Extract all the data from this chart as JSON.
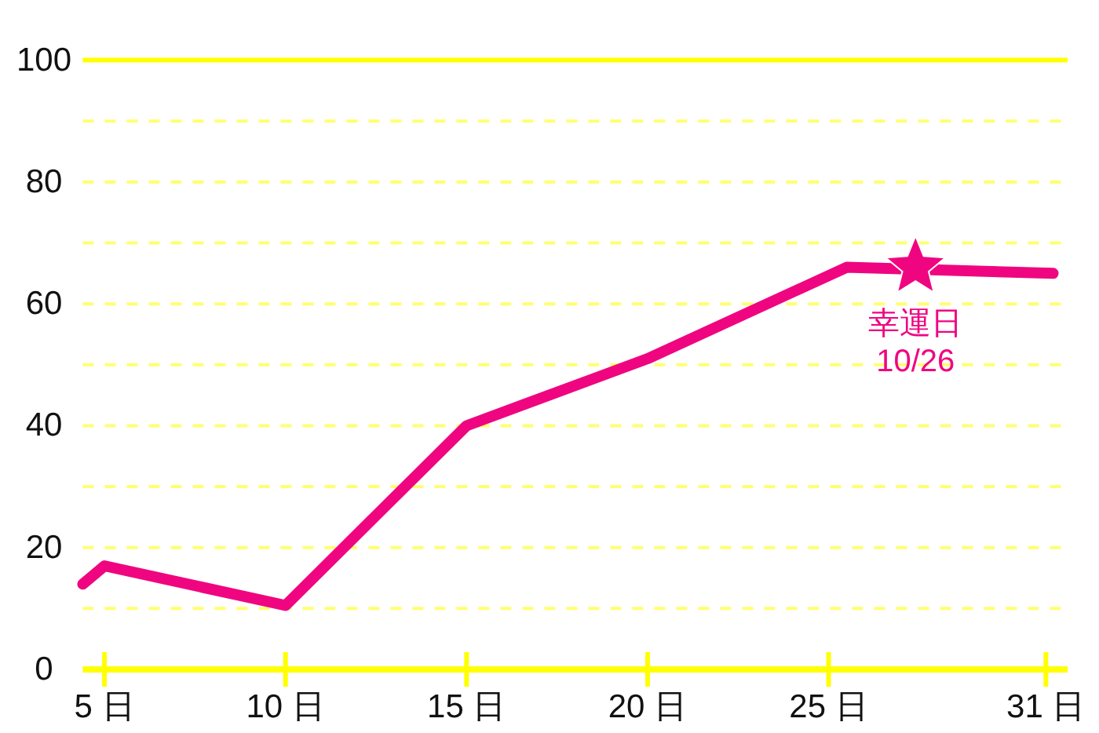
{
  "chart_data": {
    "type": "line",
    "x": [
      4.4,
      5,
      10,
      15,
      20,
      25.5,
      31.2
    ],
    "xlim": [
      4.4,
      31.6
    ],
    "xticks": [
      {
        "value": 5,
        "label": "5 日"
      },
      {
        "value": 10,
        "label": "10 日"
      },
      {
        "value": 15,
        "label": "15 日"
      },
      {
        "value": 20,
        "label": "20 日"
      },
      {
        "value": 25,
        "label": "25 日"
      },
      {
        "value": 31,
        "label": "31 日"
      }
    ],
    "ylim": [
      0,
      100
    ],
    "yticks": [
      0,
      {
        "value": 10,
        "label": null
      },
      20,
      {
        "value": 30,
        "label": null
      },
      40,
      {
        "value": 50,
        "label": null
      },
      60,
      {
        "value": 70,
        "label": null
      },
      80,
      {
        "value": 90,
        "label": null
      },
      100
    ],
    "grid": "y",
    "line_style": "solid",
    "series": [
      {
        "color": "#f00580",
        "values": [
          14,
          17,
          10.5,
          40,
          51,
          66,
          65
        ]
      },
      {
        "type": "scatter",
        "marker": "star",
        "x": [
          27.4
        ],
        "values": [
          66
        ],
        "color": "#f00580"
      }
    ],
    "annotations": [
      {
        "text": "幸運日\n10/26",
        "x": 27.4,
        "y": 66
      }
    ]
  }
}
